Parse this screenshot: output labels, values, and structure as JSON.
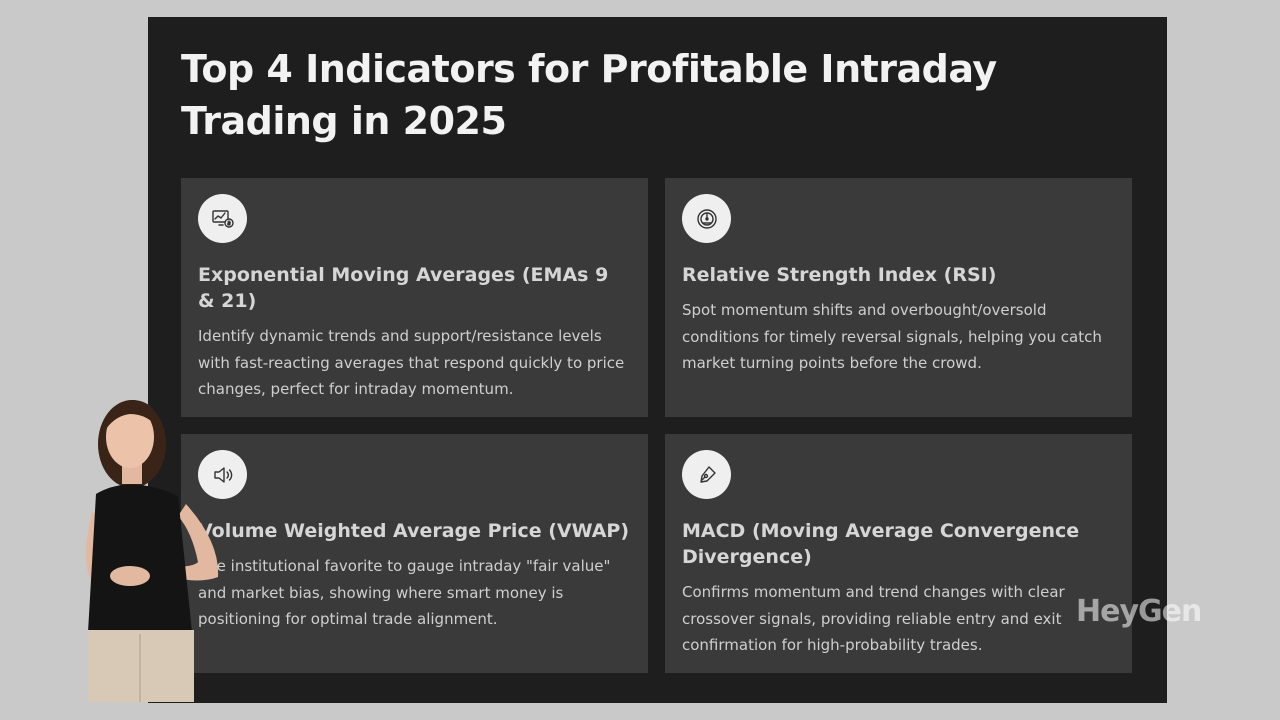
{
  "slide": {
    "title": "Top 4 Indicators for Profitable Intraday Trading in 2025",
    "background_color": "#1e1e1e",
    "card_color": "#3a3a3a"
  },
  "cards": [
    {
      "icon": "chart-monitor-dollar-icon",
      "title": "Exponential Moving Averages (EMAs 9 & 21)",
      "description": "Identify dynamic trends and support/resistance levels with fast-reacting averages that respond quickly to price changes, perfect for intraday momentum."
    },
    {
      "icon": "gauge-icon",
      "title": "Relative Strength Index (RSI)",
      "description": "Spot momentum shifts and overbought/oversold conditions for timely reversal signals, helping you catch market turning points before the crowd."
    },
    {
      "icon": "speaker-volume-icon",
      "title": "Volume Weighted Average Price (VWAP)",
      "description": "The institutional favorite to gauge intraday \"fair value\" and market bias, showing where smart money is positioning for optimal trade alignment."
    },
    {
      "icon": "pen-nib-icon",
      "title": "MACD (Moving Average Convergence Divergence)",
      "description": "Confirms momentum and trend changes with clear crossover signals, providing reliable entry and exit confirmation for high-probability trades."
    }
  ],
  "watermark": {
    "text": "HeyGen"
  }
}
